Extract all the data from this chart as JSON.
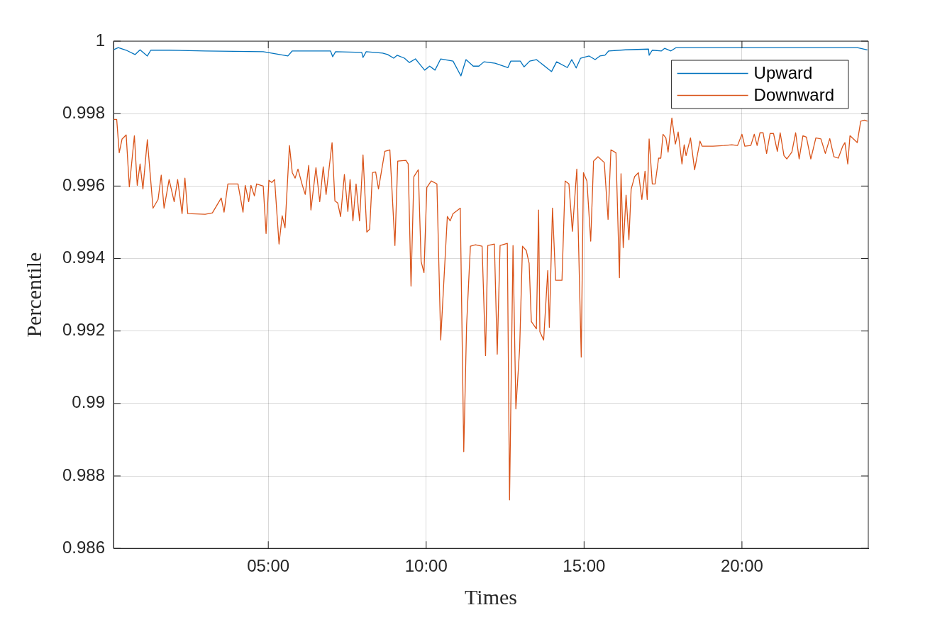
{
  "chart_data": {
    "type": "line",
    "xlabel": "Times",
    "ylabel": "Percentile",
    "xlim": [
      0.1,
      24
    ],
    "xticks": [
      {
        "value": 5,
        "label": "05:00"
      },
      {
        "value": 10,
        "label": "10:00"
      },
      {
        "value": 15,
        "label": "15:00"
      },
      {
        "value": 20,
        "label": "20:00"
      }
    ],
    "ylim": [
      0.986,
      1
    ],
    "yticks": [
      0.986,
      0.988,
      0.99,
      0.992,
      0.994,
      0.996,
      0.998,
      1
    ],
    "grid": true,
    "legend": "top right",
    "marker": "none",
    "line_style": "solid",
    "series": [
      {
        "name": "Upward",
        "color": "#0072bd",
        "x": [
          0.1,
          0.25,
          0.5,
          0.78,
          0.94,
          1.17,
          1.28,
          1.86,
          3.0,
          4.84,
          5.62,
          5.76,
          6.97,
          7.04,
          7.13,
          7.96,
          8.0,
          8.1,
          8.62,
          8.78,
          8.97,
          9.08,
          9.31,
          9.47,
          9.66,
          9.79,
          9.95,
          10.11,
          10.28,
          10.46,
          10.85,
          11.1,
          11.26,
          11.49,
          11.67,
          11.83,
          12.18,
          12.59,
          12.68,
          12.98,
          13.1,
          13.28,
          13.49,
          13.97,
          14.13,
          14.47,
          14.61,
          14.75,
          14.89,
          15.16,
          15.35,
          15.5,
          15.66,
          15.78,
          16.31,
          17.04,
          17.06,
          17.16,
          17.45,
          17.55,
          17.75,
          17.91,
          19.06,
          21.35,
          23.65,
          23.97
        ],
        "values": [
          0.99976,
          0.99982,
          0.99975,
          0.99963,
          0.99976,
          0.99959,
          0.99975,
          0.99975,
          0.99973,
          0.99971,
          0.99959,
          0.99973,
          0.99973,
          0.99957,
          0.99971,
          0.99969,
          0.99955,
          0.99971,
          0.99967,
          0.99963,
          0.99953,
          0.99961,
          0.99953,
          0.99941,
          0.99951,
          0.99937,
          0.9992,
          0.99931,
          0.9992,
          0.99951,
          0.99945,
          0.99904,
          0.99949,
          0.99931,
          0.99931,
          0.99943,
          0.99939,
          0.99927,
          0.99945,
          0.99945,
          0.99929,
          0.99945,
          0.99949,
          0.99916,
          0.99943,
          0.99927,
          0.99949,
          0.99926,
          0.99953,
          0.99959,
          0.99949,
          0.99959,
          0.99961,
          0.99973,
          0.99976,
          0.99978,
          0.99961,
          0.99975,
          0.99973,
          0.9998,
          0.99973,
          0.99982,
          0.99982,
          0.99982,
          0.99982,
          0.99976
        ]
      },
      {
        "name": "Downward",
        "color": "#d95319",
        "x": [
          0.1,
          0.2,
          0.28,
          0.37,
          0.5,
          0.6,
          0.76,
          0.85,
          0.94,
          1.03,
          1.17,
          1.35,
          1.51,
          1.61,
          1.7,
          1.86,
          2.02,
          2.13,
          2.27,
          2.36,
          2.45,
          3.0,
          3.23,
          3.51,
          3.6,
          3.72,
          4.04,
          4.2,
          4.27,
          4.38,
          4.45,
          4.56,
          4.63,
          4.84,
          4.93,
          5.02,
          5.11,
          5.2,
          5.34,
          5.44,
          5.53,
          5.67,
          5.76,
          5.85,
          5.94,
          6.08,
          6.17,
          6.28,
          6.35,
          6.51,
          6.63,
          6.74,
          6.83,
          7.02,
          7.11,
          7.2,
          7.29,
          7.41,
          7.52,
          7.59,
          7.68,
          7.78,
          7.89,
          8.0,
          8.12,
          8.21,
          8.3,
          8.4,
          8.49,
          8.69,
          8.85,
          9.01,
          9.1,
          9.36,
          9.43,
          9.52,
          9.61,
          9.75,
          9.84,
          9.93,
          10.02,
          10.16,
          10.34,
          10.46,
          10.67,
          10.76,
          10.85,
          11.08,
          11.19,
          11.28,
          11.4,
          11.56,
          11.77,
          11.88,
          11.95,
          12.16,
          12.25,
          12.34,
          12.57,
          12.64,
          12.75,
          12.84,
          12.96,
          13.05,
          13.17,
          13.26,
          13.33,
          13.49,
          13.56,
          13.6,
          13.72,
          13.85,
          13.9,
          14.0,
          14.1,
          14.3,
          14.4,
          14.52,
          14.63,
          14.77,
          14.91,
          14.98,
          15.09,
          15.21,
          15.3,
          15.44,
          15.64,
          15.76,
          15.85,
          16.01,
          16.12,
          16.17,
          16.24,
          16.33,
          16.42,
          16.49,
          16.6,
          16.72,
          16.83,
          16.93,
          17.0,
          17.06,
          17.16,
          17.25,
          17.36,
          17.43,
          17.5,
          17.59,
          17.66,
          17.78,
          17.89,
          17.98,
          18.1,
          18.17,
          18.23,
          18.37,
          18.5,
          18.67,
          18.74,
          19.08,
          19.43,
          19.68,
          19.86,
          20.0,
          20.09,
          20.28,
          20.39,
          20.48,
          20.57,
          20.67,
          20.78,
          20.89,
          21.0,
          21.12,
          21.21,
          21.33,
          21.42,
          21.58,
          21.7,
          21.81,
          21.93,
          22.04,
          22.18,
          22.34,
          22.5,
          22.64,
          22.78,
          22.91,
          23.05,
          23.19,
          23.26,
          23.35,
          23.42,
          23.65,
          23.76,
          23.88,
          23.97
        ],
        "values": [
          0.99784,
          0.99784,
          0.99692,
          0.9973,
          0.99741,
          0.99598,
          0.99739,
          0.99602,
          0.99661,
          0.99592,
          0.99728,
          0.99539,
          0.99563,
          0.9963,
          0.99539,
          0.99618,
          0.99557,
          0.99618,
          0.99524,
          0.99622,
          0.99524,
          0.99522,
          0.99526,
          0.99567,
          0.99528,
          0.99606,
          0.99606,
          0.99528,
          0.99602,
          0.99557,
          0.99602,
          0.99573,
          0.99606,
          0.996,
          0.99469,
          0.99616,
          0.9961,
          0.99618,
          0.9944,
          0.99518,
          0.99485,
          0.99712,
          0.99637,
          0.99622,
          0.99647,
          0.99602,
          0.99577,
          0.99657,
          0.99534,
          0.99651,
          0.99557,
          0.99653,
          0.99577,
          0.9972,
          0.99559,
          0.99553,
          0.99516,
          0.99632,
          0.9953,
          0.99618,
          0.99504,
          0.99606,
          0.99504,
          0.99686,
          0.99473,
          0.99481,
          0.99637,
          0.99639,
          0.99592,
          0.99696,
          0.997,
          0.99436,
          0.99669,
          0.99671,
          0.99661,
          0.99324,
          0.99626,
          0.99645,
          0.99392,
          0.99361,
          0.99596,
          0.99614,
          0.99606,
          0.99175,
          0.99516,
          0.99504,
          0.99524,
          0.99539,
          0.98867,
          0.99216,
          0.99434,
          0.99438,
          0.99434,
          0.99132,
          0.99436,
          0.9944,
          0.99136,
          0.99436,
          0.99442,
          0.98734,
          0.99436,
          0.98985,
          0.99152,
          0.99434,
          0.99422,
          0.99387,
          0.99226,
          0.99206,
          0.99534,
          0.99198,
          0.99175,
          0.99367,
          0.9921,
          0.99539,
          0.9934,
          0.9934,
          0.99614,
          0.99606,
          0.99475,
          0.99647,
          0.99128,
          0.99637,
          0.99614,
          0.99448,
          0.99669,
          0.99681,
          0.99665,
          0.99508,
          0.997,
          0.99692,
          0.99347,
          0.99634,
          0.9943,
          0.99575,
          0.99452,
          0.99591,
          0.99626,
          0.99637,
          0.99563,
          0.99641,
          0.99563,
          0.9973,
          0.99606,
          0.99606,
          0.99677,
          0.99677,
          0.99743,
          0.99733,
          0.99694,
          0.99788,
          0.99716,
          0.99749,
          0.99661,
          0.99714,
          0.99684,
          0.99733,
          0.99645,
          0.99724,
          0.9971,
          0.9971,
          0.99712,
          0.99714,
          0.99712,
          0.99743,
          0.9971,
          0.99712,
          0.99743,
          0.99712,
          0.99747,
          0.99747,
          0.9969,
          0.99745,
          0.99745,
          0.99696,
          0.99747,
          0.99684,
          0.99675,
          0.99694,
          0.99747,
          0.99675,
          0.99739,
          0.99735,
          0.99675,
          0.99733,
          0.9973,
          0.9969,
          0.99731,
          0.99681,
          0.99677,
          0.9971,
          0.9972,
          0.99661,
          0.99739,
          0.9972,
          0.99779,
          0.99782,
          0.99779
        ]
      }
    ]
  }
}
